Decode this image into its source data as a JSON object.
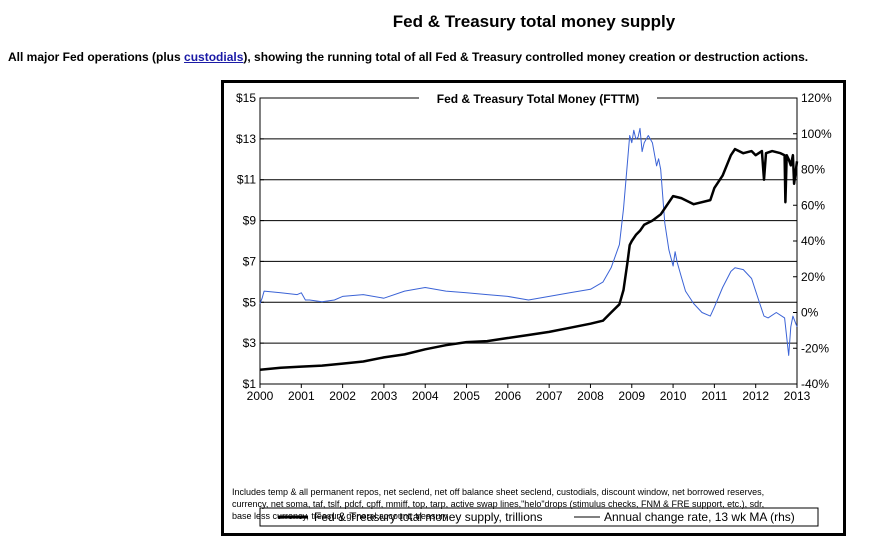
{
  "page": {
    "title": "Fed & Treasury total money supply",
    "subtitle_pre": "All major Fed operations (plus ",
    "subtitle_link": "custodials",
    "subtitle_post": "), showing the running total of all Fed & Treasury controlled money creation or destruction actions."
  },
  "chart_data": {
    "type": "line",
    "title": "Fed & Treasury Total Money (FTTM)",
    "x_ticks": [
      "2000",
      "2001",
      "2002",
      "2003",
      "2004",
      "2005",
      "2006",
      "2007",
      "2008",
      "2009",
      "2010",
      "2011",
      "2012",
      "2013"
    ],
    "xlim": [
      2000,
      2013
    ],
    "y_left_ticks": [
      "$15",
      "$13",
      "$11",
      "$9",
      "$7",
      "$5",
      "$3",
      "$1"
    ],
    "ylim_left": [
      1,
      15
    ],
    "y_right_ticks": [
      "120%",
      "100%",
      "80%",
      "60%",
      "40%",
      "20%",
      "0%",
      "-20%",
      "-40%"
    ],
    "ylim_right": [
      -40,
      120
    ],
    "grid": "horizontal",
    "series": [
      {
        "name": "Fed & Treasury total money supply, trillions",
        "axis": "left",
        "color": "#000000",
        "x": [
          2000.0,
          2000.5,
          2001.0,
          2001.5,
          2002.0,
          2002.5,
          2003.0,
          2003.5,
          2004.0,
          2004.5,
          2005.0,
          2005.5,
          2006.0,
          2006.5,
          2007.0,
          2007.5,
          2008.0,
          2008.3,
          2008.5,
          2008.7,
          2008.8,
          2008.9,
          2008.95,
          2009.0,
          2009.1,
          2009.2,
          2009.3,
          2009.5,
          2009.7,
          2009.8,
          2010.0,
          2010.2,
          2010.5,
          2010.9,
          2011.0,
          2011.2,
          2011.4,
          2011.5,
          2011.7,
          2011.9,
          2012.0,
          2012.15,
          2012.2,
          2012.25,
          2012.4,
          2012.6,
          2012.7,
          2012.72,
          2012.75,
          2012.8,
          2012.85,
          2012.9,
          2012.93,
          2013.0
        ],
        "values": [
          1.7,
          1.8,
          1.85,
          1.9,
          2.0,
          2.1,
          2.3,
          2.45,
          2.7,
          2.9,
          3.05,
          3.1,
          3.25,
          3.4,
          3.55,
          3.75,
          3.95,
          4.1,
          4.5,
          4.9,
          5.6,
          7.0,
          7.8,
          8.0,
          8.3,
          8.5,
          8.8,
          9.0,
          9.3,
          9.6,
          10.2,
          10.1,
          9.8,
          10.0,
          10.6,
          11.2,
          12.2,
          12.5,
          12.3,
          12.4,
          12.2,
          12.4,
          11.0,
          12.3,
          12.4,
          12.3,
          12.2,
          9.9,
          12.2,
          12.0,
          11.7,
          12.2,
          10.8,
          11.9
        ]
      },
      {
        "name": "Annual change rate, 13 wk MA (rhs)",
        "axis": "right",
        "color": "#3b63d6",
        "x": [
          2000.0,
          2000.05,
          2000.1,
          2000.5,
          2000.9,
          2001.0,
          2001.1,
          2001.2,
          2001.5,
          2001.8,
          2002.0,
          2002.5,
          2003.0,
          2003.5,
          2004.0,
          2004.5,
          2005.0,
          2005.5,
          2006.0,
          2006.5,
          2007.0,
          2007.5,
          2008.0,
          2008.3,
          2008.5,
          2008.7,
          2008.8,
          2008.9,
          2008.95,
          2009.0,
          2009.05,
          2009.1,
          2009.15,
          2009.2,
          2009.25,
          2009.3,
          2009.4,
          2009.5,
          2009.6,
          2009.65,
          2009.7,
          2009.8,
          2009.9,
          2010.0,
          2010.05,
          2010.1,
          2010.2,
          2010.3,
          2010.5,
          2010.7,
          2010.9,
          2011.0,
          2011.2,
          2011.4,
          2011.5,
          2011.7,
          2011.9,
          2012.0,
          2012.1,
          2012.2,
          2012.3,
          2012.5,
          2012.7,
          2012.8,
          2012.85,
          2012.9,
          2013.0
        ],
        "values": [
          5,
          8,
          12,
          11,
          10,
          11,
          7,
          7,
          6,
          7,
          9,
          10,
          8,
          12,
          14,
          12,
          11,
          10,
          9,
          7,
          9,
          11,
          13,
          17,
          25,
          38,
          58,
          85,
          99,
          95,
          102,
          97,
          98,
          103,
          90,
          95,
          99,
          95,
          82,
          86,
          80,
          50,
          35,
          26,
          34,
          28,
          20,
          12,
          5,
          0,
          -2,
          3,
          14,
          23,
          25,
          24,
          19,
          12,
          5,
          -2,
          -3,
          0,
          -3,
          -24,
          -8,
          -2,
          -8
        ]
      }
    ],
    "legend": [
      "Fed & Treasury total money supply, trillions",
      "Annual change rate, 13 wk MA (rhs)"
    ],
    "footnote_lines": [
      "Includes temp & all permanent repos, net seclend, net off balance sheet seclend, custodials, discount window, net borrowed reserves,",
      "currency, net somа, taf, tslf, pdcf, cpff, mmiff, top, tarp, active swap lines,\"helo\"drops (stimulus checks, FNM & FRE support, etc.), sdr,",
      "base less currency, treasury general account, treasury"
    ]
  }
}
